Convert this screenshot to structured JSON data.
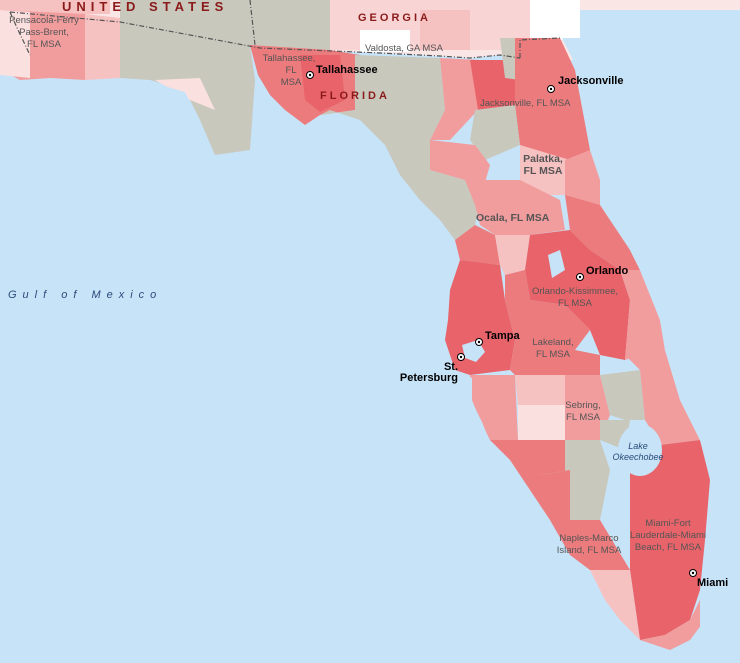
{
  "map": {
    "country_label": "UNITED STATES",
    "state_georgia": "GEORGIA",
    "state_florida": "FLORIDA",
    "water_gulf": "Gulf of Mexico",
    "lake_line1": "Lake",
    "lake_line2": "Okeechobee"
  },
  "msa_labels": {
    "pensacola": [
      "Pensacola-Ferry",
      "Pass-Brent,",
      "FL MSA"
    ],
    "tallahassee": [
      "Tallahassee,",
      "FL",
      "MSA"
    ],
    "valdosta": "Valdosta, GA MSA",
    "jacksonville": "Jacksonville, FL MSA",
    "palatka": [
      "Palatka,",
      "FL MSA"
    ],
    "ocala": "Ocala, FL MSA",
    "orlando": [
      "Orlando-Kissimmee,",
      "FL MSA"
    ],
    "lakeland": [
      "Lakeland,",
      "FL MSA"
    ],
    "sebring": [
      "Sebring,",
      "FL MSA"
    ],
    "naples": [
      "Naples-Marco",
      "Island, FL MSA"
    ],
    "miami": [
      "Miami-Fort",
      "Lauderdale-Miami",
      "Beach, FL MSA"
    ]
  },
  "cities": {
    "tallahassee": "Tallahassee",
    "jacksonville": "Jacksonville",
    "orlando": "Orlando",
    "tampa": "Tampa",
    "st_petersburg": [
      "St.",
      "Petersburg"
    ],
    "miami": "Miami"
  },
  "colors": {
    "water": "#c7e3f7",
    "non_metro": "#c8c8bd",
    "shade_darkest": "#e8646a",
    "shade_dark": "#ec7b7d",
    "shade_medium": "#f19d9e",
    "shade_light": "#f6c1c1",
    "shade_lightest": "#fbe0e0",
    "outside": "#fbe6e6",
    "border_state": "#555555"
  }
}
